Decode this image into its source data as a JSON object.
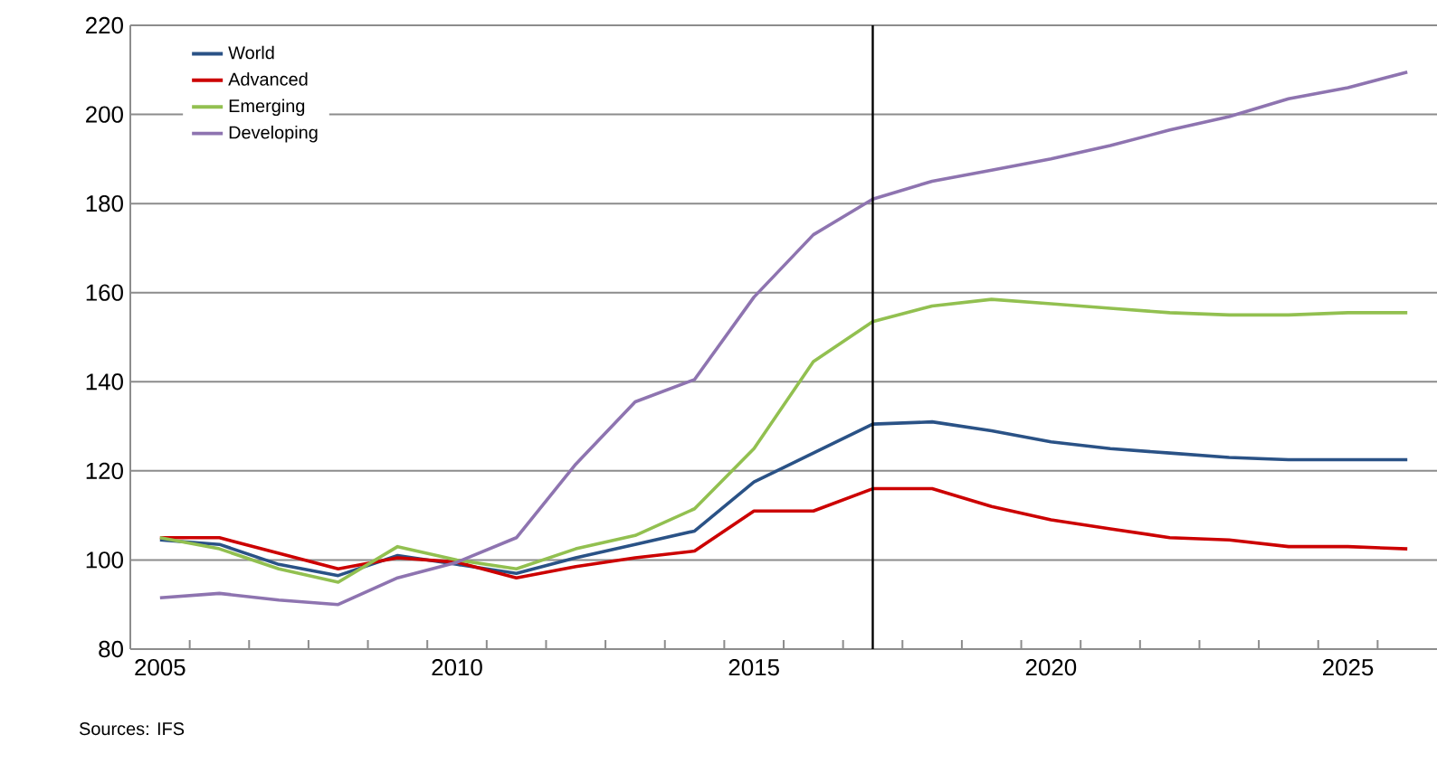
{
  "chart_data": {
    "type": "line",
    "x": [
      2005,
      2006,
      2007,
      2008,
      2009,
      2010,
      2011,
      2012,
      2013,
      2014,
      2015,
      2016,
      2017,
      2018,
      2019,
      2020,
      2021,
      2022,
      2023,
      2024,
      2025,
      2026
    ],
    "series": [
      {
        "name": "World",
        "color": "#2a5286",
        "values": [
          104.5,
          103.5,
          99,
          96.5,
          101,
          99,
          97,
          100.5,
          103.5,
          106.5,
          117.5,
          124,
          130.5,
          131,
          129,
          126.5,
          125,
          124,
          123,
          122.5,
          122.5,
          122.5
        ]
      },
      {
        "name": "Advanced",
        "color": "#cc0000",
        "values": [
          105,
          105,
          101.5,
          98,
          100.5,
          99.5,
          96,
          98.5,
          100.5,
          102,
          111,
          111,
          116,
          116,
          112,
          109,
          107,
          105,
          104.5,
          103,
          103,
          102.5
        ]
      },
      {
        "name": "Emerging",
        "color": "#92c050",
        "values": [
          105,
          102.5,
          98,
          95,
          103,
          100,
          98,
          102.5,
          105.5,
          111.5,
          125,
          144.5,
          153.5,
          157,
          158.5,
          157.5,
          156.5,
          155.5,
          155,
          155,
          155.5,
          155.5
        ]
      },
      {
        "name": "Developing",
        "color": "#8e74b0",
        "values": [
          91.5,
          92.5,
          91,
          90,
          96,
          99.5,
          105,
          121.5,
          135.5,
          140.5,
          159,
          173,
          181,
          185,
          187.5,
          190,
          193,
          196.5,
          199.5,
          203.5,
          206,
          209.5
        ]
      }
    ],
    "xlim": [
      2004.5,
      2026.5
    ],
    "xticks": [
      2005,
      2010,
      2015,
      2020,
      2025,
      {
        "value": 2004.5,
        "label": null
      },
      {
        "value": 2005.5,
        "label": null
      },
      {
        "value": 2006.5,
        "label": null
      },
      {
        "value": 2007.5,
        "label": null
      },
      {
        "value": 2008.5,
        "label": null
      },
      {
        "value": 2009.5,
        "label": null
      },
      {
        "value": 2010.5,
        "label": null
      },
      {
        "value": 2011.5,
        "label": null
      },
      {
        "value": 2012.5,
        "label": null
      },
      {
        "value": 2013.5,
        "label": null
      },
      {
        "value": 2014.5,
        "label": null
      },
      {
        "value": 2015.5,
        "label": null
      },
      {
        "value": 2016.5,
        "label": null
      },
      {
        "value": 2017.5,
        "label": null
      },
      {
        "value": 2018.5,
        "label": null
      },
      {
        "value": 2019.5,
        "label": null
      },
      {
        "value": 2020.5,
        "label": null
      },
      {
        "value": 2021.5,
        "label": null
      },
      {
        "value": 2022.5,
        "label": null
      },
      {
        "value": 2023.5,
        "label": null
      },
      {
        "value": 2024.5,
        "label": null
      },
      {
        "value": 2025.5,
        "label": null
      }
    ],
    "ylim": [
      80,
      220
    ],
    "yticks": [
      80,
      100,
      120,
      140,
      160,
      180,
      200,
      220
    ],
    "grid": "y",
    "legend": "top left",
    "ref_lines": [
      {
        "axis": "x",
        "value": 2017,
        "color": "#000000"
      }
    ],
    "annotations": [
      "Sources: IFS"
    ]
  }
}
